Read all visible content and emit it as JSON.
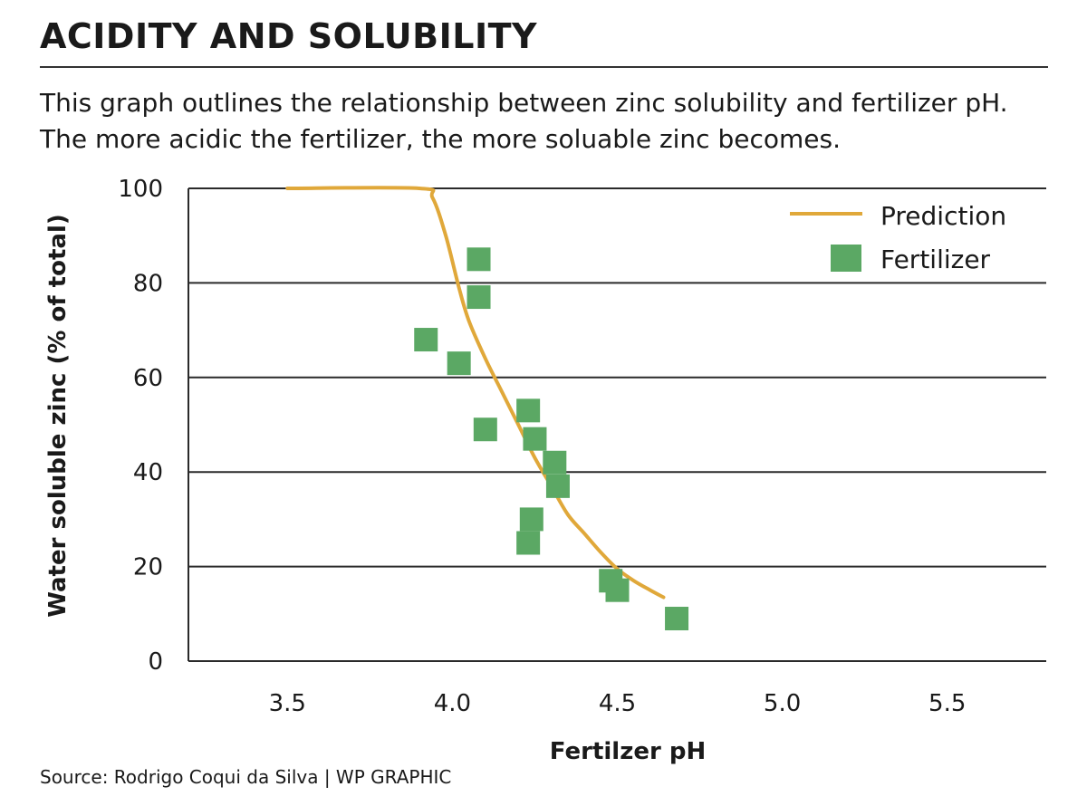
{
  "title": "ACIDITY AND SOLUBILITY",
  "subtitle": "This graph outlines the relationship between zinc solubility and fertilizer pH. The more acidic the fertilizer, the more soluable zinc becomes.",
  "source": "Source: Rodrigo Coqui da Silva  |  WP GRAPHIC",
  "chart_data": {
    "type": "scatter",
    "xlabel": "Fertilzer pH",
    "ylabel": "Water soluble zinc (% of total)",
    "xlim": [
      3.2,
      5.8
    ],
    "ylim": [
      0,
      100
    ],
    "x_ticks": [
      "3.5",
      "4.0",
      "4.5",
      "5.0",
      "5.5"
    ],
    "x_tick_values": [
      3.5,
      4.0,
      4.5,
      5.0,
      5.5
    ],
    "y_ticks": [
      "0",
      "20",
      "40",
      "60",
      "80",
      "100"
    ],
    "y_tick_values": [
      0,
      20,
      40,
      60,
      80,
      100
    ],
    "grid": "horizontal",
    "legend_position": "top-right",
    "series": [
      {
        "name": "Prediction",
        "kind": "line",
        "color": "#e0a83a",
        "x": [
          3.5,
          3.9,
          3.94,
          3.98,
          4.02,
          4.05,
          4.1,
          4.15,
          4.2,
          4.25,
          4.3,
          4.35,
          4.4,
          4.45,
          4.5,
          4.55,
          4.6,
          4.64
        ],
        "y": [
          100,
          100,
          98,
          90,
          79,
          72,
          64,
          57,
          50,
          43,
          37,
          31,
          27,
          23,
          19.5,
          17,
          15,
          13.5
        ]
      },
      {
        "name": "Fertilizer",
        "kind": "scatter",
        "color": "#5ba864",
        "x": [
          4.08,
          4.08,
          3.92,
          4.02,
          4.1,
          4.23,
          4.25,
          4.31,
          4.32,
          4.24,
          4.23,
          4.48,
          4.5,
          4.68
        ],
        "y": [
          85,
          77,
          68,
          63,
          49,
          53,
          47,
          42,
          37,
          30,
          25,
          17,
          15,
          9
        ]
      }
    ]
  }
}
